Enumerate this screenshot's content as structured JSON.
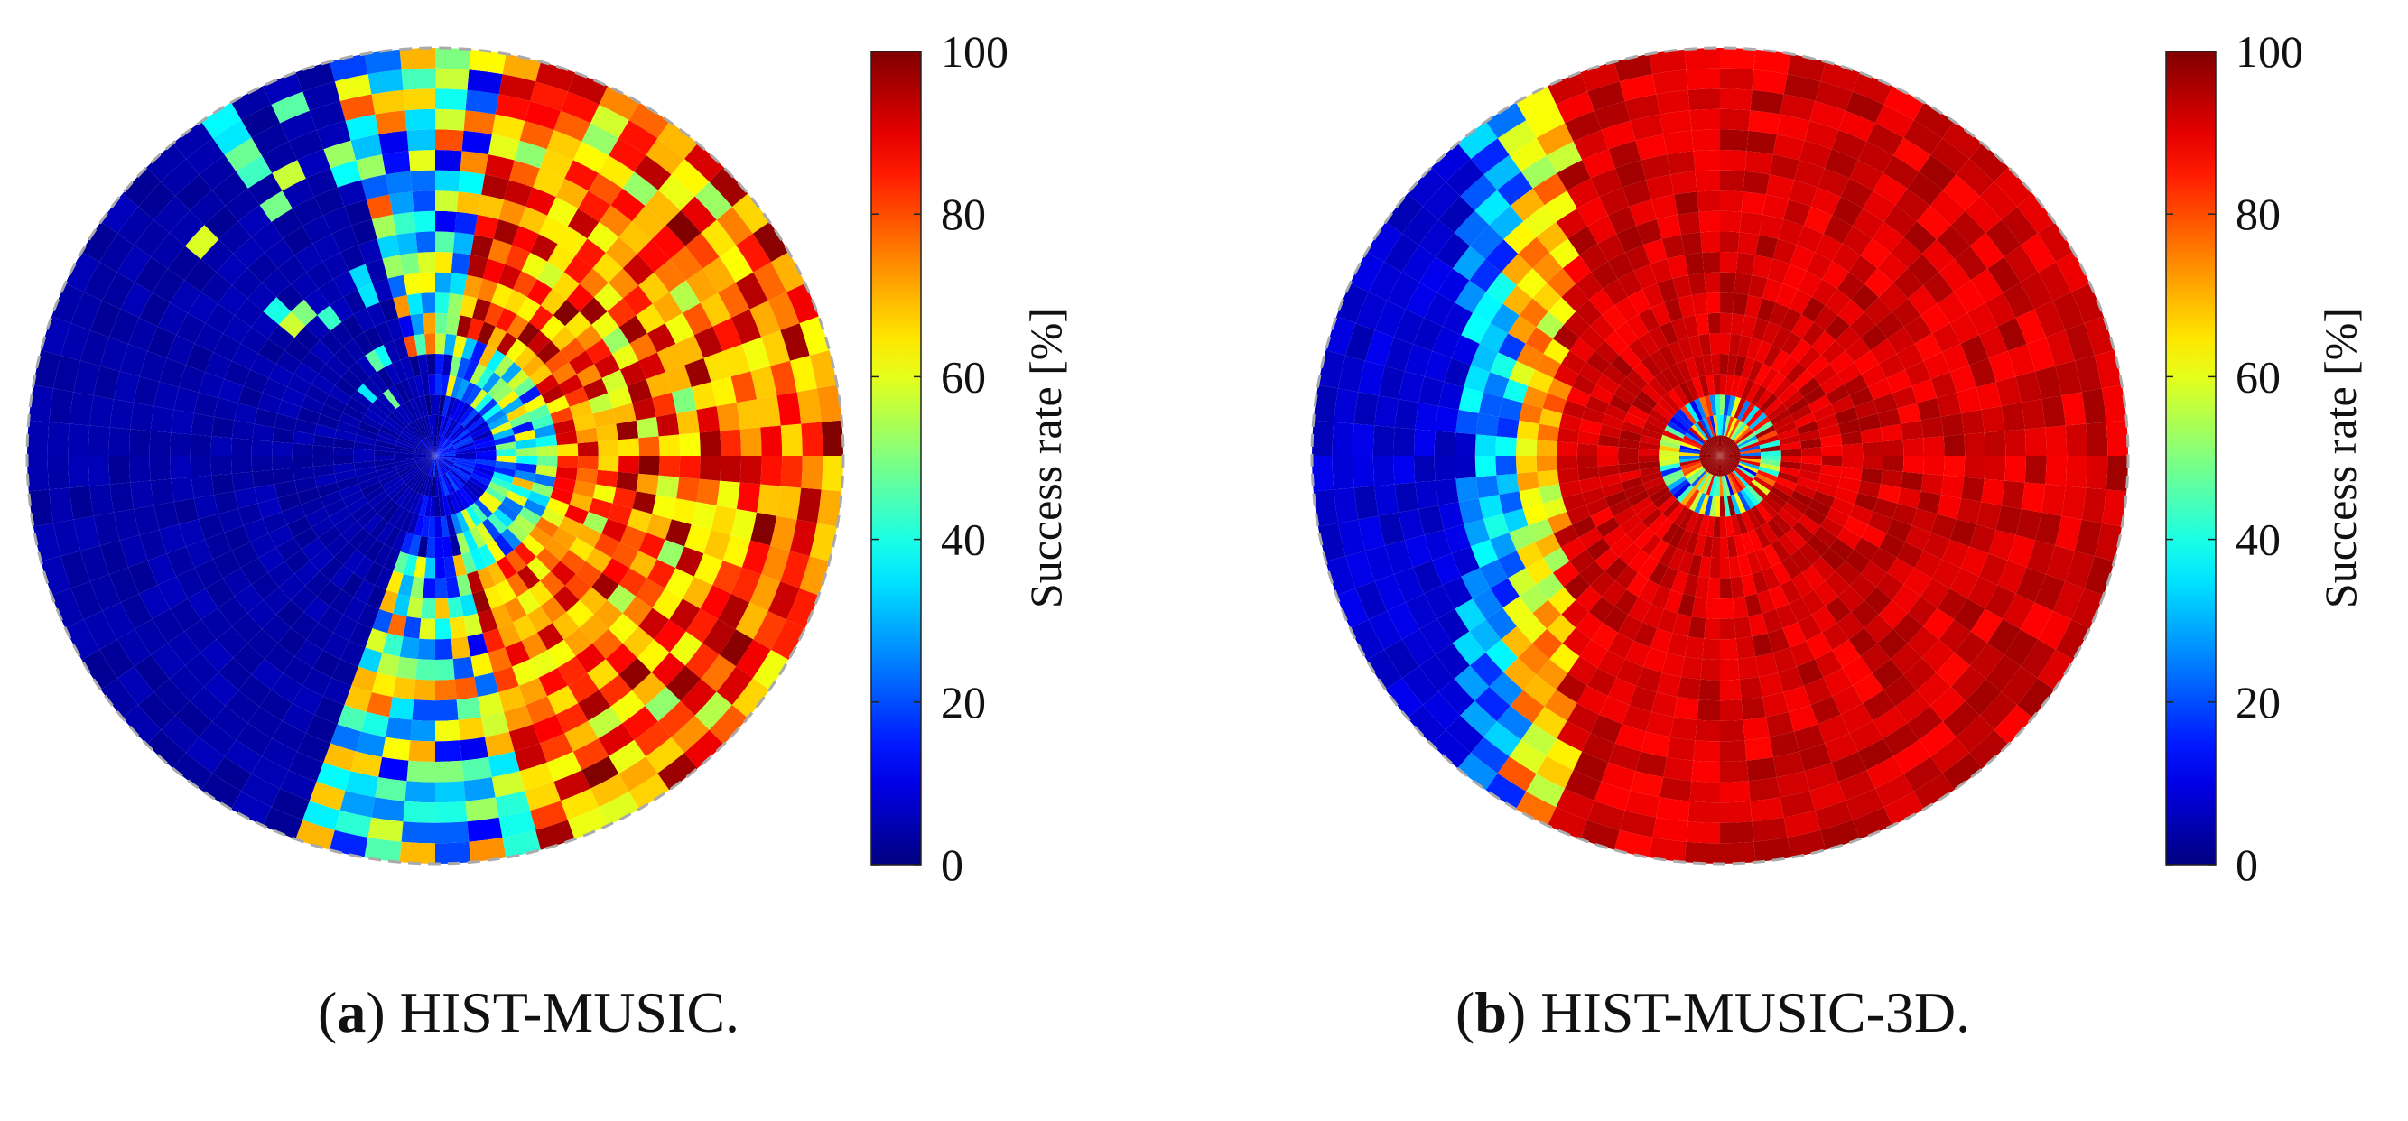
{
  "chart_data": [
    {
      "type": "heatmap",
      "subtype": "polar",
      "panel_letter": "a",
      "caption": "HIST-MUSIC.",
      "colorbar": {
        "label": "Success rate [%]",
        "range": [
          0,
          100
        ],
        "ticks": [
          "0",
          "20",
          "40",
          "60",
          "80",
          "100"
        ],
        "colormap": "jet"
      },
      "description_values": {
        "left_half_success": 2,
        "right_half_success": 85,
        "transition_band_success": 45
      }
    },
    {
      "type": "heatmap",
      "subtype": "polar",
      "panel_letter": "b",
      "caption": "HIST-MUSIC-3D.",
      "colorbar": {
        "label": "Success rate [%]",
        "range": [
          0,
          100
        ],
        "ticks": [
          "0",
          "20",
          "40",
          "60",
          "80",
          "100"
        ],
        "colormap": "jet"
      },
      "description_values": {
        "left_crescent_success": 5,
        "right_region_success": 95,
        "transition_band_success": 50
      }
    }
  ]
}
